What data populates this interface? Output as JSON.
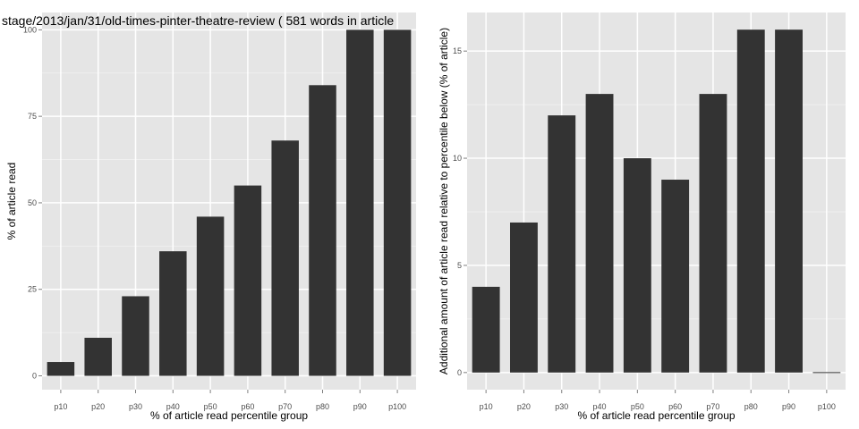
{
  "chart_data": [
    {
      "type": "bar",
      "title": "stage/2013/jan/31/old-times-pinter-theatre-review ( 581 words in article",
      "xlabel": "% of article read percentile group",
      "ylabel": "% of article read",
      "categories": [
        "p10",
        "p20",
        "p30",
        "p40",
        "p50",
        "p60",
        "p70",
        "p80",
        "p90",
        "p100"
      ],
      "values": [
        4,
        11,
        23,
        36,
        46,
        55,
        68,
        84,
        100,
        100
      ],
      "ylim": [
        -4,
        105
      ],
      "yticks": [
        0,
        25,
        50,
        75,
        100
      ],
      "grid": true,
      "colors": {
        "bar": "#333333",
        "panel": "#e5e5e5",
        "gridline": "#ffffff"
      }
    },
    {
      "type": "bar",
      "title": "",
      "xlabel": "% of article read percentile group",
      "ylabel": "Additional amount of article read relative to percentile below (% of article)",
      "categories": [
        "p10",
        "p20",
        "p30",
        "p40",
        "p50",
        "p60",
        "p70",
        "p80",
        "p90",
        "p100"
      ],
      "values": [
        4,
        7,
        12,
        13,
        10,
        9,
        13,
        16,
        16,
        0
      ],
      "ylim": [
        -0.8,
        16.8
      ],
      "yticks": [
        0,
        5,
        10,
        15
      ],
      "grid": true,
      "colors": {
        "bar": "#333333",
        "panel": "#e5e5e5",
        "gridline": "#ffffff"
      }
    }
  ]
}
